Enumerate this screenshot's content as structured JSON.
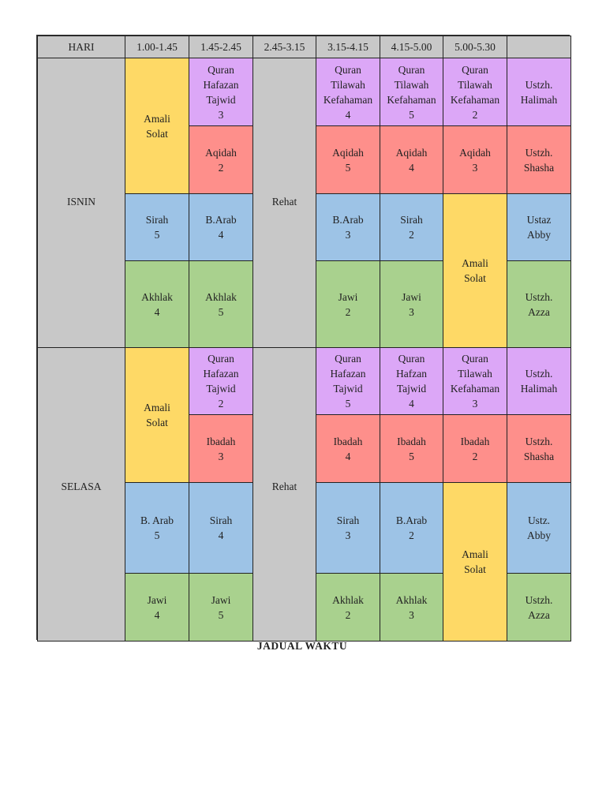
{
  "header": {
    "hari": "HARI",
    "times": [
      "1.00-1.45",
      "1.45-2.45",
      "2.45-3.15",
      "3.15-4.15",
      "4.15-5.00",
      "5.00-5.30",
      ""
    ]
  },
  "colors": {
    "grey": "#c8c8c8",
    "yellow": "#fed966",
    "purple": "#dca7f7",
    "red": "#fe8f8b",
    "blue": "#9dc3e6",
    "green": "#a9d18e"
  },
  "isnin": {
    "day": "ISNIN",
    "rehat": "Rehat",
    "c1_amali": [
      "Amali",
      "Solat"
    ],
    "r1": {
      "c2": [
        "Quran",
        "Hafazan",
        "Tajwid",
        "3"
      ],
      "c4": [
        "Quran",
        "Tilawah",
        "Kefahaman",
        "4"
      ],
      "c5": [
        "Quran",
        "Tilawah",
        "Kefahaman",
        "5"
      ],
      "c6": [
        "Quran",
        "Tilawah",
        "Kefahaman",
        "2"
      ],
      "teacher": [
        "Ustzh.",
        "Halimah"
      ]
    },
    "r2": {
      "c2": [
        "Aqidah",
        "2"
      ],
      "c4": [
        "Aqidah",
        "5"
      ],
      "c5": [
        "Aqidah",
        "4"
      ],
      "c6": [
        "Aqidah",
        "3"
      ],
      "teacher": [
        "Ustzh.",
        "Shasha"
      ]
    },
    "r3": {
      "c1": [
        "Sirah",
        "5"
      ],
      "c2": [
        "B.Arab",
        "4"
      ],
      "c4": [
        "B.Arab",
        "3"
      ],
      "c5": [
        "Sirah",
        "2"
      ],
      "teacher": [
        "Ustaz",
        "Abby"
      ]
    },
    "r4": {
      "c1": [
        "Akhlak",
        "4"
      ],
      "c2": [
        "Akhlak",
        "5"
      ],
      "c4": [
        "Jawi",
        "2"
      ],
      "c5": [
        "Jawi",
        "3"
      ],
      "teacher": [
        "Ustzh.",
        "Azza"
      ]
    },
    "c6_amali": [
      "Amali",
      "Solat"
    ]
  },
  "selasa": {
    "day": "SELASA",
    "rehat": "Rehat",
    "c1_amali": [
      "Amali",
      "Solat"
    ],
    "r1": {
      "c2": [
        "Quran",
        "Hafazan",
        "Tajwid",
        "2"
      ],
      "c4": [
        "Quran",
        "Hafazan",
        "Tajwid",
        "5"
      ],
      "c5": [
        "Quran",
        "Hafzan",
        "Tajwid",
        "4"
      ],
      "c6": [
        "Quran",
        "Tilawah",
        "Kefahaman",
        "3"
      ],
      "teacher": [
        "Ustzh.",
        "Halimah"
      ]
    },
    "r2": {
      "c2": [
        "Ibadah",
        "3"
      ],
      "c4": [
        "Ibadah",
        "4"
      ],
      "c5": [
        "Ibadah",
        "5"
      ],
      "c6": [
        "Ibadah",
        "2"
      ],
      "teacher": [
        "Ustzh.",
        "Shasha"
      ]
    },
    "r3": {
      "c1": [
        "B. Arab",
        "5"
      ],
      "c2": [
        "Sirah",
        "4"
      ],
      "c4": [
        "Sirah",
        "3"
      ],
      "c5": [
        "B.Arab",
        "2"
      ],
      "teacher": [
        "Ustz.",
        "Abby"
      ]
    },
    "r4": {
      "c1": [
        "Jawi",
        "4"
      ],
      "c2": [
        "Jawi",
        "5"
      ],
      "c4": [
        "Akhlak",
        "2"
      ],
      "c5": [
        "Akhlak",
        "3"
      ],
      "teacher": [
        "Ustzh.",
        "Azza"
      ]
    },
    "c6_amali": [
      "Amali",
      "Solat"
    ]
  },
  "caption": "JADUAL WAKTU"
}
